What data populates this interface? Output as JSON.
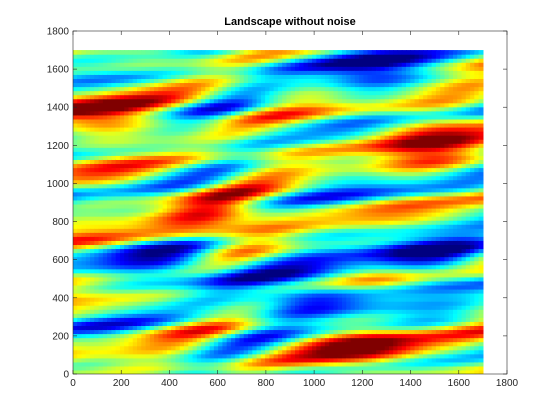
{
  "chart_data": {
    "type": "heatmap",
    "title": "Landscape without noise",
    "xlabel": "",
    "ylabel": "",
    "xlim": [
      0,
      1800
    ],
    "ylim": [
      0,
      1800
    ],
    "data_extent": [
      0,
      1700,
      0,
      1700
    ],
    "x_ticks": [
      0,
      200,
      400,
      600,
      800,
      1000,
      1200,
      1400,
      1600,
      1800
    ],
    "y_ticks": [
      0,
      200,
      400,
      600,
      800,
      1000,
      1200,
      1400,
      1600,
      1800
    ],
    "colormap": "jet",
    "grid": false,
    "description_of_field": "diagonal banded smooth random field, bands tilted upward to the right",
    "features": [
      {
        "x": 560,
        "y": 820,
        "level": "high"
      },
      {
        "x": 1450,
        "y": 1260,
        "level": "high"
      },
      {
        "x": 60,
        "y": 1360,
        "level": "high"
      },
      {
        "x": 1250,
        "y": 100,
        "level": "high"
      },
      {
        "x": 480,
        "y": 560,
        "level": "low"
      },
      {
        "x": 1200,
        "y": 1580,
        "level": "low"
      },
      {
        "x": 1450,
        "y": 620,
        "level": "low"
      },
      {
        "x": 1000,
        "y": 420,
        "level": "low"
      }
    ]
  }
}
